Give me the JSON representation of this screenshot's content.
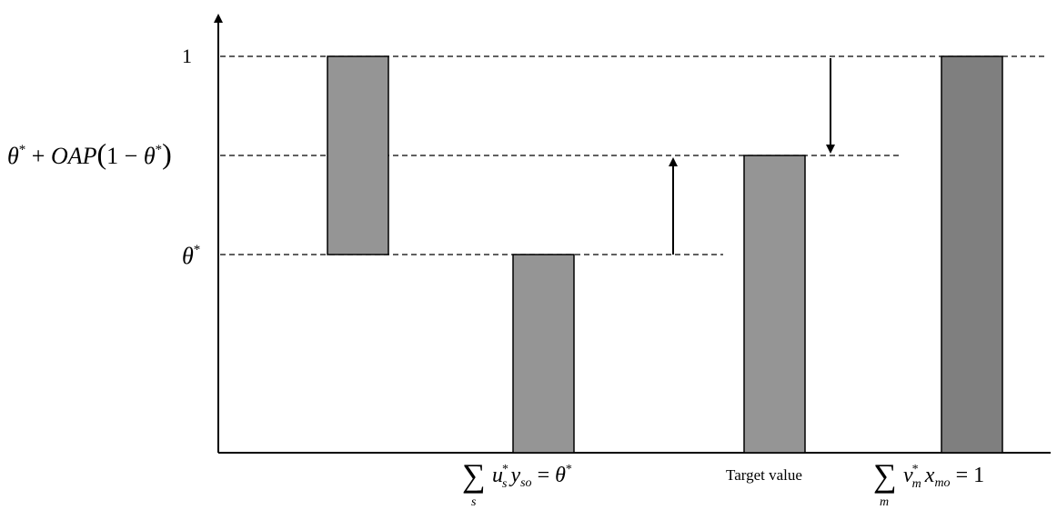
{
  "y_axis": {
    "label_one": "1",
    "label_mid_parts": [
      "θ",
      "*",
      " + ",
      "OAP",
      "(",
      "1",
      " − ",
      "θ",
      "*",
      ")"
    ],
    "label_theta": [
      "θ",
      "*"
    ]
  },
  "x_labels": {
    "output_sum": [
      "∑",
      "s",
      "u",
      "*",
      "s",
      "y",
      "so",
      " = ",
      "θ",
      "*"
    ],
    "target": "Target value",
    "input_sum": [
      "∑",
      "m",
      "v",
      "*",
      "m",
      "x",
      "mo",
      " = ",
      "1"
    ]
  },
  "bars": [
    {
      "from": "theta",
      "to": "one",
      "color": "#959595"
    },
    {
      "from": "zero",
      "to": "theta",
      "color": "#959595"
    },
    {
      "from": "zero",
      "to": "mid",
      "color": "#959595"
    },
    {
      "from": "zero",
      "to": "one",
      "color": "#7f7f7f"
    }
  ],
  "arrows": [
    {
      "direction": "up",
      "from": "theta",
      "to": "mid"
    },
    {
      "direction": "down",
      "from": "one",
      "to": "mid"
    }
  ]
}
